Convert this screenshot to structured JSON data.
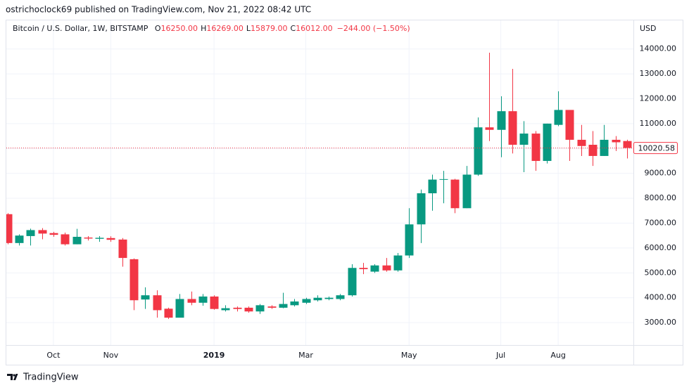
{
  "header": "ostrichoclock69 published on TradingView.com, Nov 21, 2022 08:42 UTC",
  "footer": "TradingView",
  "chart_data": {
    "type": "candlestick",
    "legend": {
      "symbol": "Bitcoin / U.S. Dollar, 1W, BITSTAMP",
      "ohlc": [
        {
          "key": "O",
          "value": "16250.00"
        },
        {
          "key": "H",
          "value": "16269.00"
        },
        {
          "key": "L",
          "value": "15879.00"
        },
        {
          "key": "C",
          "value": "16012.00"
        }
      ],
      "change": "−244.00 (−1.50%)"
    },
    "currency": "USD",
    "last_price": 10020.58,
    "up_color": "#089981",
    "down_color": "#f23645",
    "grid": true,
    "categories": [
      null,
      null,
      null,
      null,
      "Oct",
      null,
      null,
      null,
      null,
      "Nov",
      null,
      null,
      null,
      null,
      null,
      null,
      null,
      null,
      "2019",
      null,
      null,
      null,
      null,
      null,
      null,
      null,
      "Mar",
      null,
      null,
      null,
      null,
      null,
      null,
      null,
      null,
      "May",
      null,
      null,
      null,
      null,
      null,
      null,
      null,
      "Jul",
      null,
      null,
      null,
      null,
      "Aug",
      null,
      null,
      null,
      null,
      null,
      null
    ],
    "open": [
      7360,
      6200,
      6480,
      6720,
      6600,
      6550,
      6150,
      6420,
      6370,
      6400,
      6340,
      5550,
      3930,
      4100,
      3560,
      3200,
      3950,
      3800,
      4050,
      3500,
      3600,
      3600,
      3450,
      3650,
      3600,
      3700,
      3800,
      3900,
      3950,
      3950,
      4100,
      5200,
      5050,
      5300,
      5100,
      5700,
      6950,
      8200,
      8750,
      8750,
      7600,
      8950,
      10850,
      10750,
      11500,
      10150,
      10600,
      9500,
      10950,
      11550,
      10350,
      10150,
      9700,
      10350,
      10300
    ],
    "high": [
      7400,
      6550,
      6780,
      6800,
      6650,
      6620,
      6770,
      6480,
      6480,
      6470,
      6400,
      5580,
      4420,
      4300,
      3600,
      4150,
      4250,
      4150,
      4100,
      3700,
      3650,
      3650,
      3750,
      3700,
      4200,
      3950,
      4000,
      4100,
      4050,
      4150,
      5350,
      5400,
      5350,
      5600,
      5800,
      7600,
      8350,
      8950,
      9100,
      8780,
      9300,
      11250,
      13850,
      12100,
      13200,
      11100,
      10700,
      11000,
      12300,
      11550,
      10950,
      10700,
      10950,
      10500,
      10350
    ],
    "low": [
      6150,
      6100,
      6100,
      6350,
      6450,
      6100,
      6150,
      6300,
      6250,
      6250,
      5250,
      3500,
      3550,
      3200,
      3150,
      3200,
      3700,
      3680,
      3520,
      3450,
      3450,
      3400,
      3350,
      3550,
      3580,
      3650,
      3750,
      3850,
      3900,
      3900,
      4050,
      4950,
      5000,
      5050,
      5050,
      5600,
      6200,
      7500,
      7800,
      7400,
      7600,
      8900,
      10300,
      9650,
      9800,
      9050,
      9100,
      9400,
      10900,
      9500,
      9700,
      9300,
      9700,
      9900,
      9600
    ],
    "close": [
      6200,
      6500,
      6720,
      6580,
      6530,
      6150,
      6450,
      6380,
      6410,
      6330,
      5600,
      3900,
      4100,
      3500,
      3200,
      3950,
      3800,
      4050,
      3550,
      3580,
      3550,
      3450,
      3700,
      3600,
      3750,
      3850,
      3950,
      4000,
      4000,
      4100,
      5200,
      5150,
      5300,
      5100,
      5700,
      6950,
      8200,
      8750,
      8770,
      7600,
      8950,
      10850,
      10750,
      11500,
      10150,
      10600,
      9500,
      11000,
      11550,
      10350,
      10100,
      9700,
      10350,
      10250,
      10020.58
    ],
    "ylim": [
      2100,
      15150
    ],
    "yticks": [
      {
        "value": 3000,
        "label": "3000.00"
      },
      {
        "value": 4000,
        "label": "4000.00"
      },
      {
        "value": 5000,
        "label": "5000.00"
      },
      {
        "value": 6000,
        "label": "6000.00"
      },
      {
        "value": 7000,
        "label": "7000.00"
      },
      {
        "value": 8000,
        "label": "8000.00"
      },
      {
        "value": 9000,
        "label": "9000.00"
      },
      {
        "value": 10000,
        "label": "10000.00"
      },
      {
        "value": 11000,
        "label": "11000.00"
      },
      {
        "value": 12000,
        "label": "12000.00"
      },
      {
        "value": 13000,
        "label": "13000.00"
      },
      {
        "value": 14000,
        "label": "14000.00"
      }
    ]
  }
}
